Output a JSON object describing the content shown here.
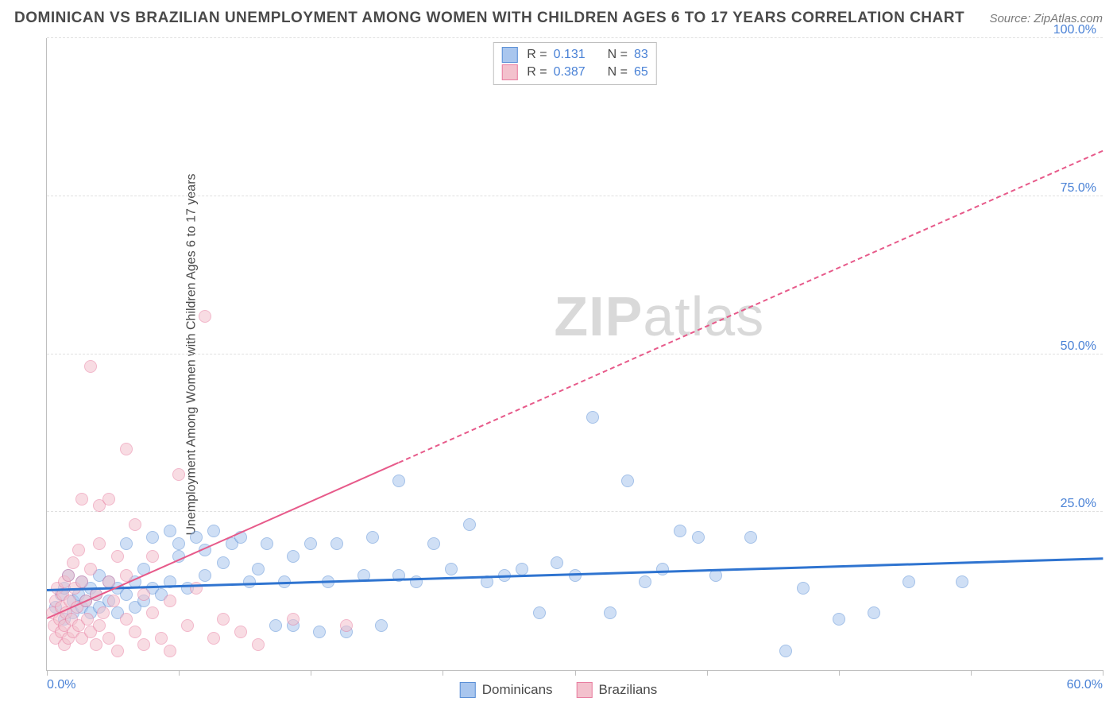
{
  "header": {
    "title": "DOMINICAN VS BRAZILIAN UNEMPLOYMENT AMONG WOMEN WITH CHILDREN AGES 6 TO 17 YEARS CORRELATION CHART",
    "source": "Source: ZipAtlas.com"
  },
  "watermark": {
    "part1": "ZIP",
    "part2": "atlas"
  },
  "chart": {
    "type": "scatter",
    "ylabel": "Unemployment Among Women with Children Ages 6 to 17 years",
    "xlim": [
      0,
      60
    ],
    "ylim": [
      0,
      100
    ],
    "xtick_positions": [
      0,
      7.5,
      15,
      22.5,
      30,
      37.5,
      45,
      52.5,
      60
    ],
    "xtick_labels": {
      "0": "0.0%",
      "60": "60.0%"
    },
    "ytick_positions": [
      25,
      50,
      75,
      100
    ],
    "ytick_labels": {
      "25": "25.0%",
      "50": "50.0%",
      "75": "75.0%",
      "100": "100.0%"
    },
    "background_color": "#ffffff",
    "grid_color": "#e0e0e0",
    "axis_color": "#bfbfbf",
    "marker_radius": 8,
    "marker_opacity": 0.55,
    "series": [
      {
        "name": "Dominicans",
        "key": "dominicans",
        "fill": "#a9c6ee",
        "stroke": "#5a8fd6",
        "R": "0.131",
        "N": "83",
        "trend": {
          "x0": 0,
          "y0": 12.5,
          "x1": 60,
          "y1": 17.5,
          "color": "#2f74d0",
          "width": 2.5,
          "dash_from_x": null
        },
        "points": [
          [
            0.5,
            10
          ],
          [
            0.8,
            12
          ],
          [
            1,
            8
          ],
          [
            1,
            13
          ],
          [
            1.2,
            15
          ],
          [
            1.5,
            11
          ],
          [
            1.5,
            9
          ],
          [
            1.8,
            12
          ],
          [
            2,
            14
          ],
          [
            2,
            10
          ],
          [
            2.2,
            11
          ],
          [
            2.5,
            13
          ],
          [
            2.5,
            9
          ],
          [
            2.8,
            12
          ],
          [
            3,
            15
          ],
          [
            3,
            10
          ],
          [
            3.5,
            14
          ],
          [
            3.5,
            11
          ],
          [
            4,
            13
          ],
          [
            4,
            9
          ],
          [
            4.5,
            20
          ],
          [
            4.5,
            12
          ],
          [
            5,
            14
          ],
          [
            5,
            10
          ],
          [
            5.5,
            16
          ],
          [
            5.5,
            11
          ],
          [
            6,
            21
          ],
          [
            6,
            13
          ],
          [
            6.5,
            12
          ],
          [
            7,
            22
          ],
          [
            7,
            14
          ],
          [
            7.5,
            18
          ],
          [
            7.5,
            20
          ],
          [
            8,
            13
          ],
          [
            8.5,
            21
          ],
          [
            9,
            19
          ],
          [
            9,
            15
          ],
          [
            9.5,
            22
          ],
          [
            10,
            17
          ],
          [
            10.5,
            20
          ],
          [
            11,
            21
          ],
          [
            11.5,
            14
          ],
          [
            12,
            16
          ],
          [
            12.5,
            20
          ],
          [
            13,
            7
          ],
          [
            13.5,
            14
          ],
          [
            14,
            18
          ],
          [
            14,
            7
          ],
          [
            15,
            20
          ],
          [
            15.5,
            6
          ],
          [
            16,
            14
          ],
          [
            16.5,
            20
          ],
          [
            17,
            6
          ],
          [
            18,
            15
          ],
          [
            18.5,
            21
          ],
          [
            19,
            7
          ],
          [
            20,
            30
          ],
          [
            20,
            15
          ],
          [
            21,
            14
          ],
          [
            22,
            20
          ],
          [
            23,
            16
          ],
          [
            24,
            23
          ],
          [
            25,
            14
          ],
          [
            26,
            15
          ],
          [
            27,
            16
          ],
          [
            28,
            9
          ],
          [
            29,
            17
          ],
          [
            30,
            15
          ],
          [
            31,
            40
          ],
          [
            32,
            9
          ],
          [
            33,
            30
          ],
          [
            34,
            14
          ],
          [
            35,
            16
          ],
          [
            36,
            22
          ],
          [
            37,
            21
          ],
          [
            38,
            15
          ],
          [
            40,
            21
          ],
          [
            42,
            3
          ],
          [
            43,
            13
          ],
          [
            45,
            8
          ],
          [
            47,
            9
          ],
          [
            49,
            14
          ],
          [
            52,
            14
          ]
        ]
      },
      {
        "name": "Brazilians",
        "key": "brazilians",
        "fill": "#f3c1cd",
        "stroke": "#e87da0",
        "R": "0.387",
        "N": "65",
        "trend": {
          "x0": 0,
          "y0": 8,
          "x1": 60,
          "y1": 82,
          "color": "#e75a8a",
          "width": 2,
          "dash_from_x": 20
        },
        "points": [
          [
            0.3,
            9
          ],
          [
            0.4,
            7
          ],
          [
            0.5,
            11
          ],
          [
            0.5,
            5
          ],
          [
            0.6,
            13
          ],
          [
            0.7,
            8
          ],
          [
            0.8,
            10
          ],
          [
            0.8,
            6
          ],
          [
            0.9,
            12
          ],
          [
            1,
            14
          ],
          [
            1,
            7
          ],
          [
            1,
            4
          ],
          [
            1.1,
            9
          ],
          [
            1.2,
            15
          ],
          [
            1.2,
            5
          ],
          [
            1.3,
            11
          ],
          [
            1.4,
            8
          ],
          [
            1.5,
            17
          ],
          [
            1.5,
            6
          ],
          [
            1.6,
            13
          ],
          [
            1.7,
            10
          ],
          [
            1.8,
            19
          ],
          [
            1.8,
            7
          ],
          [
            2,
            14
          ],
          [
            2,
            5
          ],
          [
            2,
            27
          ],
          [
            2.2,
            11
          ],
          [
            2.3,
            8
          ],
          [
            2.5,
            16
          ],
          [
            2.5,
            6
          ],
          [
            2.5,
            48
          ],
          [
            2.8,
            12
          ],
          [
            2.8,
            4
          ],
          [
            3,
            20
          ],
          [
            3,
            7
          ],
          [
            3,
            26
          ],
          [
            3.2,
            9
          ],
          [
            3.5,
            14
          ],
          [
            3.5,
            5
          ],
          [
            3.5,
            27
          ],
          [
            3.8,
            11
          ],
          [
            4,
            18
          ],
          [
            4,
            3
          ],
          [
            4.5,
            8
          ],
          [
            4.5,
            15
          ],
          [
            4.5,
            35
          ],
          [
            5,
            23
          ],
          [
            5,
            6
          ],
          [
            5.5,
            12
          ],
          [
            5.5,
            4
          ],
          [
            6,
            9
          ],
          [
            6,
            18
          ],
          [
            6.5,
            5
          ],
          [
            7,
            11
          ],
          [
            7,
            3
          ],
          [
            7.5,
            31
          ],
          [
            8,
            7
          ],
          [
            8.5,
            13
          ],
          [
            9,
            56
          ],
          [
            9.5,
            5
          ],
          [
            10,
            8
          ],
          [
            11,
            6
          ],
          [
            12,
            4
          ],
          [
            14,
            8
          ],
          [
            17,
            7
          ]
        ]
      }
    ]
  },
  "legend_top": {
    "r_label": "R =",
    "n_label": "N ="
  },
  "legend_bottom": {
    "items": [
      {
        "key": "dominicans"
      },
      {
        "key": "brazilians"
      }
    ]
  }
}
